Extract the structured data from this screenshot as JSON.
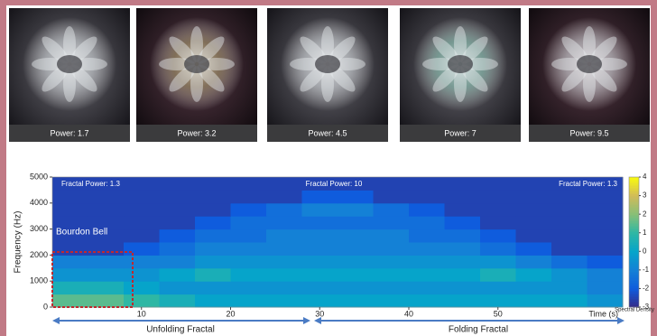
{
  "images": [
    {
      "caption": "Power: 1.7"
    },
    {
      "caption": "Power: 3.2"
    },
    {
      "caption": "Power: 4.5"
    },
    {
      "caption": "Power: 7"
    },
    {
      "caption": "Power: 9.5"
    }
  ],
  "chart_data": {
    "type": "heatmap",
    "xlabel": "Time (s)",
    "ylabel": "Frequency (Hz)",
    "xlim": [
      0,
      64
    ],
    "xticks": [
      10,
      20,
      30,
      40,
      50
    ],
    "ylim": [
      0,
      5000
    ],
    "yticks": [
      0,
      1000,
      2000,
      3000,
      4000,
      5000
    ],
    "x_bins": [
      0,
      4,
      8,
      12,
      16,
      20,
      24,
      28,
      32,
      36,
      40,
      44,
      48,
      52,
      56,
      60,
      64
    ],
    "y_bins": [
      0,
      500,
      1000,
      1500,
      2000,
      2500,
      3000,
      3500,
      4000,
      4500,
      5000
    ],
    "z": [
      [
        1.5,
        1.5,
        1,
        0.5,
        0,
        0,
        0,
        0,
        0,
        0,
        0,
        0,
        0,
        0,
        0,
        -0.5
      ],
      [
        0.5,
        0.5,
        0,
        -0.5,
        -0.5,
        -0.5,
        -0.5,
        -0.5,
        -0.5,
        -0.5,
        -0.5,
        -0.5,
        -0.5,
        -0.5,
        -0.5,
        -1
      ],
      [
        -0.5,
        -0.5,
        -0.5,
        0,
        0.5,
        0,
        0,
        0,
        0,
        0,
        0,
        0,
        0.5,
        0,
        -0.5,
        -1
      ],
      [
        -1,
        -1,
        -1,
        -1,
        -0.5,
        -0.5,
        -0.5,
        -0.5,
        -0.5,
        -0.5,
        -0.5,
        -0.5,
        -0.5,
        -1,
        -1.5,
        -2
      ],
      [
        -2.5,
        -2.5,
        -2,
        -1.5,
        -1,
        -1,
        -1,
        -1,
        -1,
        -1,
        -1,
        -1,
        -1.5,
        -2,
        -2.5,
        -2.5
      ],
      [
        -2.5,
        -2.5,
        -2.5,
        -2,
        -1.5,
        -1.5,
        -1,
        -1,
        -1,
        -1,
        -1.5,
        -1.5,
        -2,
        -2.5,
        -2.5,
        -2.5
      ],
      [
        -2.5,
        -2.5,
        -2.5,
        -2.5,
        -2,
        -1.5,
        -1.5,
        -1.5,
        -1.5,
        -1.5,
        -1.5,
        -2,
        -2.5,
        -2.5,
        -2.5,
        -2.5
      ],
      [
        -2.5,
        -2.5,
        -2.5,
        -2.5,
        -2.5,
        -2,
        -1.5,
        -1,
        -1,
        -1.5,
        -2,
        -2.5,
        -2.5,
        -2.5,
        -2.5,
        -2.5
      ],
      [
        -2.5,
        -2.5,
        -2.5,
        -2.5,
        -2.5,
        -2.5,
        -2.5,
        -2,
        -2,
        -2.5,
        -2.5,
        -2.5,
        -2.5,
        -2.5,
        -2.5,
        -2.5
      ],
      [
        -2.5,
        -2.5,
        -2.5,
        -2.5,
        -2.5,
        -2.5,
        -2.5,
        -2.5,
        -2.5,
        -2.5,
        -2.5,
        -2.5,
        -2.5,
        -2.5,
        -2.5,
        -2.5
      ]
    ],
    "clim": [
      -3,
      4
    ],
    "cticks": [
      -3,
      -2,
      -1,
      0,
      1,
      2,
      3,
      4
    ],
    "clabel": "Spectral Density",
    "colorscale": [
      "#352a87",
      "#0f5cdd",
      "#1481d6",
      "#06a4ca",
      "#2eb7a4",
      "#87bf77",
      "#d1bb59",
      "#f9fb0e"
    ],
    "annotations": [
      "Fractal Power: 1.3",
      "Fractal Power: 10",
      "Fractal Power: 1.3",
      "Bourdon Bell"
    ],
    "sections": [
      "Unfolding Fractal",
      "Folding Fractal"
    ]
  }
}
